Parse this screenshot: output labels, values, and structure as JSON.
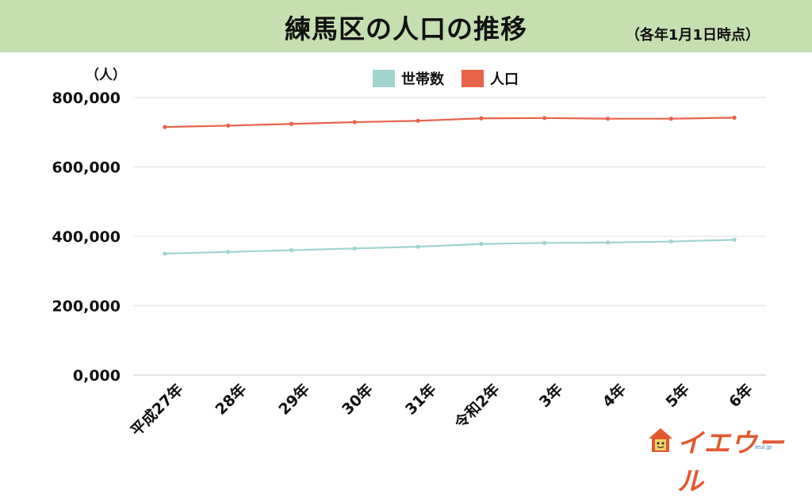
{
  "header": {
    "title": "練馬区の人口の推移",
    "subtitle": "（各年1月1日時点）"
  },
  "unit_label": "（人）",
  "colors": {
    "header_bg": "#c5dfb0",
    "households": "#9fd4d0",
    "population": "#e8624a",
    "logo": "#e2592f"
  },
  "logo": {
    "text": "イエウール",
    "sub": "ieul.jp"
  },
  "chart_data": {
    "type": "line",
    "categories": [
      "平成27年",
      "28年",
      "29年",
      "30年",
      "31年",
      "令和2年",
      "3年",
      "4年",
      "5年",
      "6年"
    ],
    "series": [
      {
        "name": "世帯数",
        "color": "#9fd4d0",
        "values": [
          350000,
          355000,
          360000,
          365000,
          370000,
          378000,
          381000,
          382000,
          385000,
          390000
        ]
      },
      {
        "name": "人口",
        "color": "#e8624a",
        "values": [
          715000,
          719000,
          724000,
          729000,
          733000,
          740000,
          741000,
          739000,
          739000,
          742000
        ]
      }
    ],
    "ylim": [
      0,
      800000
    ],
    "yticks": [
      "0,000",
      "200,000",
      "400,000",
      "600,000",
      "800,000"
    ],
    "grid": true,
    "legend": "top-center"
  }
}
